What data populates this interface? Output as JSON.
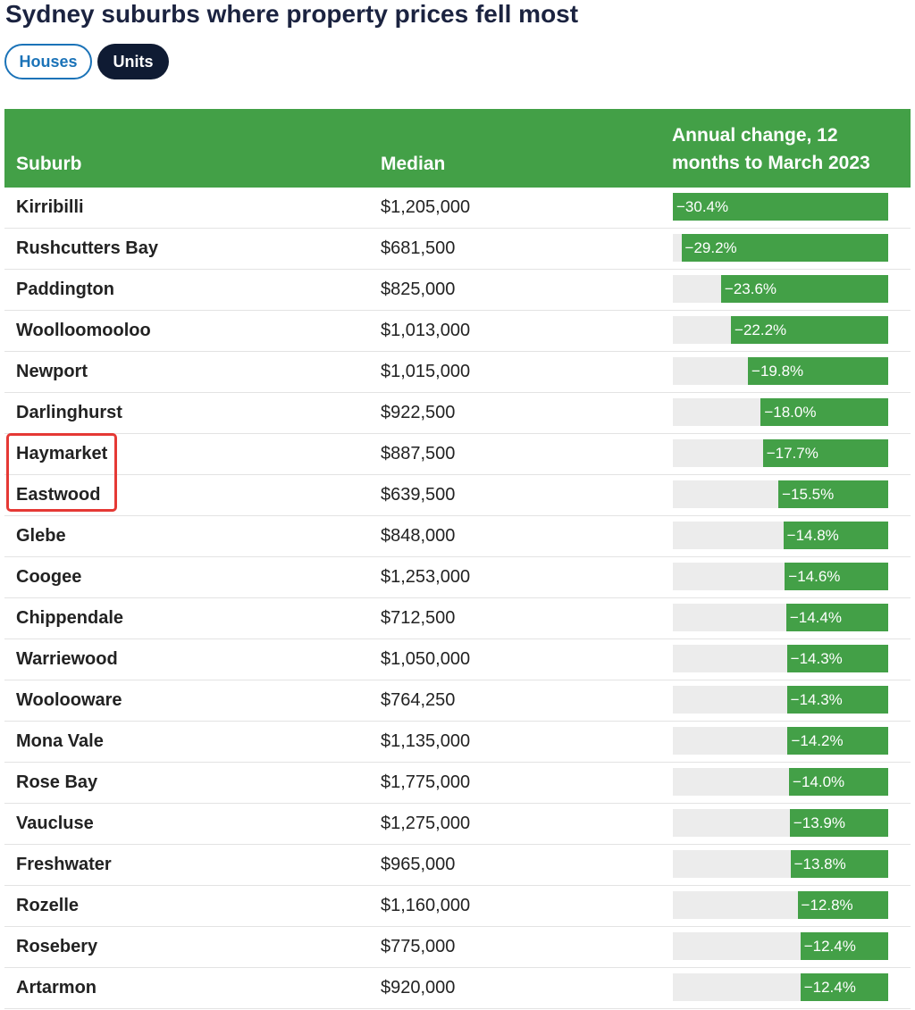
{
  "header": {
    "title": "Sydney suburbs where property prices fell most"
  },
  "tabs": [
    {
      "label": "Houses",
      "active": false
    },
    {
      "label": "Units",
      "active": true
    }
  ],
  "colors": {
    "bar": "#43a047",
    "header_bg": "#43a047",
    "track": "#ececec",
    "active_tab": "#0f1b33",
    "inactive_tab_border": "#1b73b8",
    "highlight": "#e53935"
  },
  "chart_data": {
    "type": "table",
    "columns": [
      "Suburb",
      "Median",
      "Annual change, 12 months to March 2023"
    ],
    "xlim": [
      0,
      30.4
    ],
    "highlighted_rows": [
      "Haymarket",
      "Eastwood"
    ],
    "rows": [
      {
        "suburb": "Kirribilli",
        "median": "$1,205,000",
        "change_label": "−30.4%",
        "change": -30.4
      },
      {
        "suburb": "Rushcutters Bay",
        "median": "$681,500",
        "change_label": "−29.2%",
        "change": -29.2
      },
      {
        "suburb": "Paddington",
        "median": "$825,000",
        "change_label": "−23.6%",
        "change": -23.6
      },
      {
        "suburb": "Woolloomooloo",
        "median": "$1,013,000",
        "change_label": "−22.2%",
        "change": -22.2
      },
      {
        "suburb": "Newport",
        "median": "$1,015,000",
        "change_label": "−19.8%",
        "change": -19.8
      },
      {
        "suburb": "Darlinghurst",
        "median": "$922,500",
        "change_label": "−18.0%",
        "change": -18.0
      },
      {
        "suburb": "Haymarket",
        "median": "$887,500",
        "change_label": "−17.7%",
        "change": -17.7
      },
      {
        "suburb": "Eastwood",
        "median": "$639,500",
        "change_label": "−15.5%",
        "change": -15.5
      },
      {
        "suburb": "Glebe",
        "median": "$848,000",
        "change_label": "−14.8%",
        "change": -14.8
      },
      {
        "suburb": "Coogee",
        "median": "$1,253,000",
        "change_label": "−14.6%",
        "change": -14.6
      },
      {
        "suburb": "Chippendale",
        "median": "$712,500",
        "change_label": "−14.4%",
        "change": -14.4
      },
      {
        "suburb": "Warriewood",
        "median": "$1,050,000",
        "change_label": "−14.3%",
        "change": -14.3
      },
      {
        "suburb": "Woolooware",
        "median": "$764,250",
        "change_label": "−14.3%",
        "change": -14.3
      },
      {
        "suburb": "Mona Vale",
        "median": "$1,135,000",
        "change_label": "−14.2%",
        "change": -14.2
      },
      {
        "suburb": "Rose Bay",
        "median": "$1,775,000",
        "change_label": "−14.0%",
        "change": -14.0
      },
      {
        "suburb": "Vaucluse",
        "median": "$1,275,000",
        "change_label": "−13.9%",
        "change": -13.9
      },
      {
        "suburb": "Freshwater",
        "median": "$965,000",
        "change_label": "−13.8%",
        "change": -13.8
      },
      {
        "suburb": "Rozelle",
        "median": "$1,160,000",
        "change_label": "−12.8%",
        "change": -12.8
      },
      {
        "suburb": "Rosebery",
        "median": "$775,000",
        "change_label": "−12.4%",
        "change": -12.4
      },
      {
        "suburb": "Artarmon",
        "median": "$920,000",
        "change_label": "−12.4%",
        "change": -12.4
      }
    ]
  }
}
